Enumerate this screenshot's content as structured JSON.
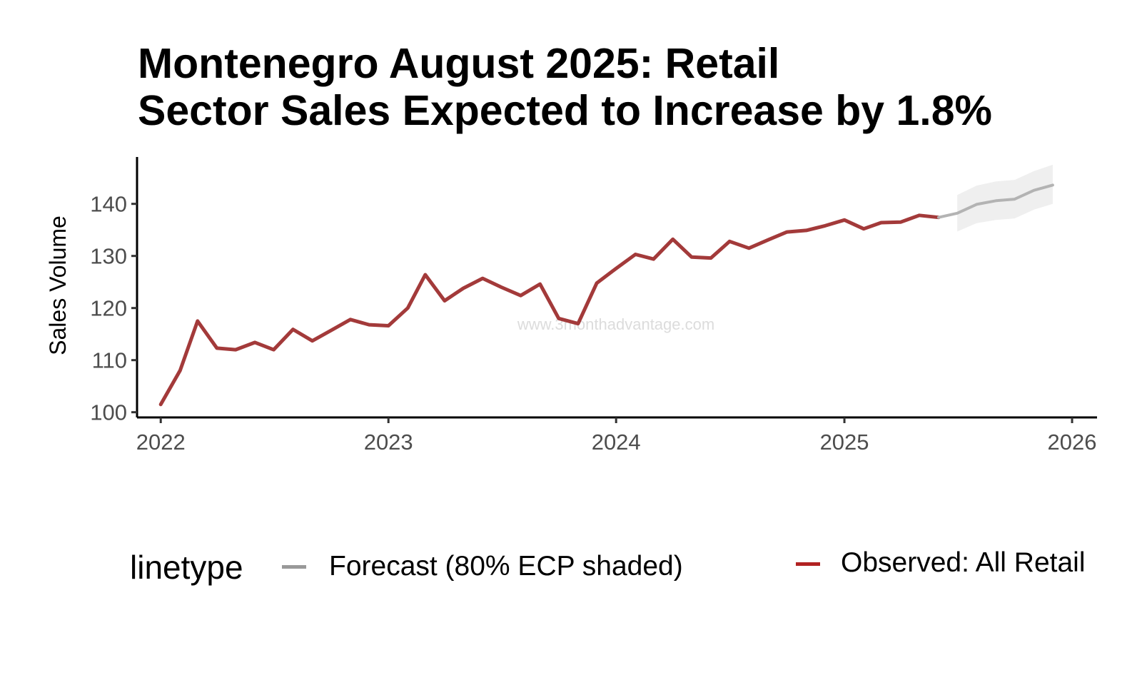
{
  "chart_data": {
    "type": "line",
    "title": "Montenegro August 2025: Retail Sector Sales Expected to Increase by 1.8%",
    "title_lines": [
      "Montenegro August 2025: Retail",
      "Sector Sales Expected to Increase by 1.8%"
    ],
    "xlabel": "",
    "ylabel": "Sales Volume",
    "x_ticks": [
      "2022",
      "2023",
      "2024",
      "2025",
      "2026"
    ],
    "y_ticks": [
      100,
      110,
      120,
      130,
      140
    ],
    "ylim": [
      99,
      149
    ],
    "xlim": [
      "2021-11-24",
      "2026-02-10"
    ],
    "grid": false,
    "watermark": "www.3monthadvantage.com",
    "legend": {
      "position": "bottom",
      "title": "linetype",
      "entries": [
        {
          "label": "Forecast (80% ECP shaded)",
          "color": "#999999"
        },
        {
          "label": "Observed: All Retail",
          "color": "#b22222"
        }
      ]
    },
    "series": [
      {
        "name": "Observed: All Retail",
        "color": "#a33a3a",
        "x": [
          "2022-01",
          "2022-02",
          "2022-03",
          "2022-04",
          "2022-05",
          "2022-06",
          "2022-07",
          "2022-08",
          "2022-09",
          "2022-10",
          "2022-11",
          "2022-12",
          "2023-01",
          "2023-02",
          "2023-03",
          "2023-04",
          "2023-05",
          "2023-06",
          "2023-07",
          "2023-08",
          "2023-09",
          "2023-10",
          "2023-11",
          "2023-12",
          "2024-01",
          "2024-02",
          "2024-03",
          "2024-04",
          "2024-05",
          "2024-06",
          "2024-07",
          "2024-08",
          "2024-09",
          "2024-10",
          "2024-11",
          "2024-12",
          "2025-01",
          "2025-02",
          "2025-03",
          "2025-04",
          "2025-05",
          "2025-06"
        ],
        "values": [
          101.5,
          108,
          117.5,
          112.3,
          112,
          113.4,
          112,
          115.9,
          113.7,
          115.7,
          117.8,
          116.8,
          116.6,
          120,
          126.4,
          121.4,
          123.8,
          125.7,
          124,
          122.4,
          124.6,
          118,
          117,
          124.8,
          127.6,
          130.3,
          129.4,
          133.2,
          129.8,
          129.6,
          132.8,
          131.5,
          133.1,
          134.6,
          134.9,
          135.8,
          136.9,
          135.2,
          136.4,
          136.5,
          137.8,
          137.4
        ]
      },
      {
        "name": "Forecast (80% ECP shaded)",
        "color": "#b3b3b3",
        "x": [
          "2025-06",
          "2025-07",
          "2025-08",
          "2025-09",
          "2025-10",
          "2025-11",
          "2025-12"
        ],
        "values": [
          137.4,
          138.2,
          139.9,
          140.6,
          140.9,
          142.6,
          143.6
        ],
        "band_x": [
          "2025-07",
          "2025-08",
          "2025-09",
          "2025-10",
          "2025-11",
          "2025-12"
        ],
        "band_lower": [
          134.7,
          136.3,
          136.9,
          137.2,
          138.9,
          140.0
        ],
        "band_upper": [
          141.7,
          143.5,
          144.3,
          144.6,
          146.3,
          147.5
        ]
      }
    ]
  }
}
